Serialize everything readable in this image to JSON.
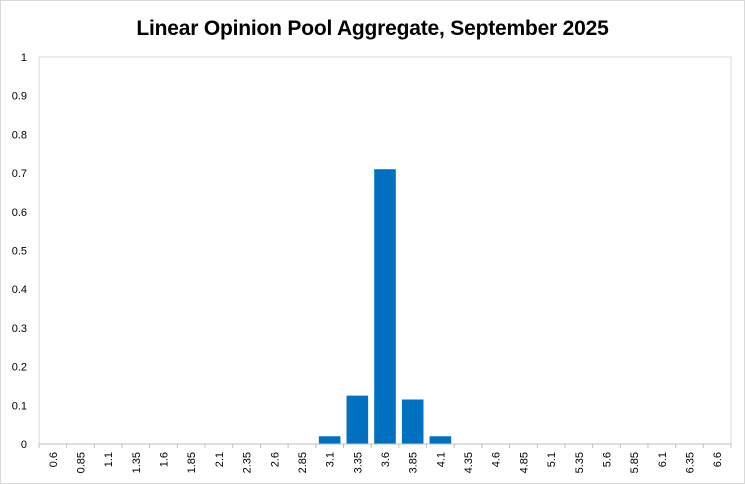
{
  "chart_data": {
    "type": "bar",
    "title": "Linear Opinion Pool Aggregate, September 2025",
    "xlabel": "",
    "ylabel": "",
    "categories": [
      "0.6",
      "0.85",
      "1.1",
      "1.35",
      "1.6",
      "1.85",
      "2.1",
      "2.35",
      "2.6",
      "2.85",
      "3.1",
      "3.35",
      "3.6",
      "3.85",
      "4.1",
      "4.35",
      "4.6",
      "4.85",
      "5.1",
      "5.35",
      "5.6",
      "5.85",
      "6.1",
      "6.35",
      "6.6"
    ],
    "values": [
      0,
      0,
      0,
      0,
      0,
      0,
      0,
      0,
      0,
      0,
      0.02,
      0.125,
      0.71,
      0.115,
      0.02,
      0,
      0,
      0,
      0,
      0,
      0,
      0,
      0,
      0,
      0
    ],
    "yticks": [
      "0",
      "0.1",
      "0.2",
      "0.3",
      "0.4",
      "0.5",
      "0.6",
      "0.7",
      "0.8",
      "0.9",
      "1"
    ],
    "ylim": [
      0,
      1
    ],
    "grid": false,
    "legend": "none",
    "bar_color": "#0070c0"
  }
}
